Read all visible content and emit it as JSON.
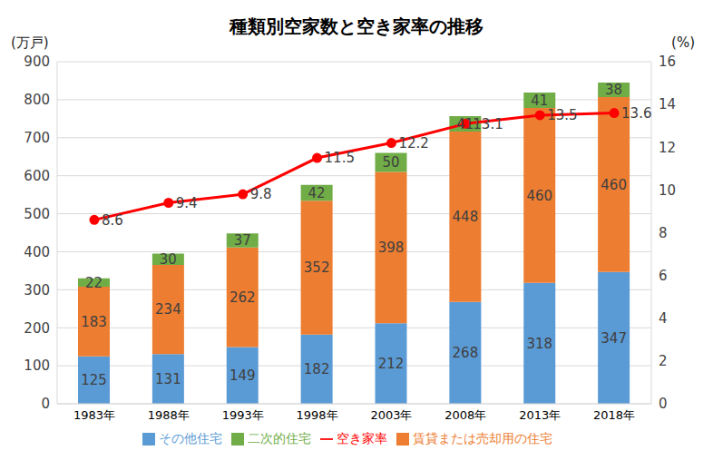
{
  "chart_data": {
    "type": "bar",
    "title": "種類別空家数と空き家率の推移",
    "y_label": "(万戸)",
    "y2_label": "(%)",
    "categories": [
      "1983年",
      "1988年",
      "1993年",
      "1998年",
      "2003年",
      "2008年",
      "2013年",
      "2018年"
    ],
    "series": [
      {
        "name": "その他住宅",
        "type": "bar",
        "color": "#5b9bd5",
        "values": [
          125,
          131,
          149,
          182,
          212,
          268,
          318,
          347
        ]
      },
      {
        "name": "賃貸または売却用の住宅",
        "type": "bar",
        "color": "#ed7d31",
        "values": [
          183,
          234,
          262,
          352,
          398,
          448,
          460,
          460
        ]
      },
      {
        "name": "二次的住宅",
        "type": "bar",
        "color": "#70ad47",
        "values": [
          22,
          30,
          37,
          42,
          50,
          41,
          41,
          38
        ]
      },
      {
        "name": "空き家率",
        "type": "line",
        "axis": "y2",
        "color": "#ff0000",
        "marker": "circle",
        "values": [
          8.6,
          9.4,
          9.8,
          11.5,
          12.2,
          13.1,
          13.5,
          13.6
        ]
      }
    ],
    "ylim": [
      0,
      900
    ],
    "yticks": [
      0,
      100,
      200,
      300,
      400,
      500,
      600,
      700,
      800,
      900
    ],
    "y2lim": [
      0,
      16
    ],
    "y2ticks": [
      0,
      2,
      4,
      6,
      8,
      10,
      12,
      14,
      16
    ],
    "stacked": true,
    "data_labels": true,
    "grid": true,
    "legend": "bottom"
  }
}
